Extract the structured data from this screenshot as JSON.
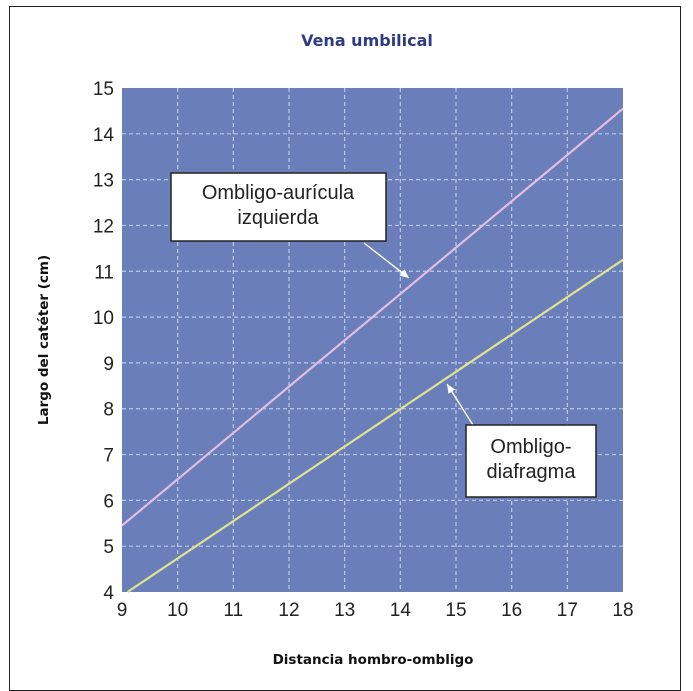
{
  "chart_data": {
    "type": "line",
    "title": "Vena umbilical",
    "xlabel": "Distancia hombro-ombligo",
    "ylabel": "Largo del catéter (cm)",
    "xlim": [
      9,
      18
    ],
    "ylim": [
      4,
      15
    ],
    "xticks": [
      "9",
      "10",
      "11",
      "12",
      "13",
      "14",
      "15",
      "16",
      "17",
      "18"
    ],
    "yticks": [
      "4",
      "5",
      "6",
      "7",
      "8",
      "9",
      "10",
      "11",
      "12",
      "13",
      "14",
      "15"
    ],
    "grid": true,
    "colors": {
      "plot_background": "#6a7fba",
      "grid": "#bcc8ea",
      "title": "#2d3c82",
      "series_1": "#e2bde0",
      "series_2": "#dfe38e"
    },
    "series": [
      {
        "name": "Ombligo-aurícula izquierda",
        "label_lines": [
          "Ombligo-aurícula",
          "izquierda"
        ],
        "x": [
          9,
          18
        ],
        "y": [
          5.45,
          14.55
        ]
      },
      {
        "name": "Ombligo-diafragma",
        "label_lines": [
          "Ombligo-",
          "diafragma"
        ],
        "x": [
          9.1,
          18
        ],
        "y": [
          4,
          11.25
        ]
      }
    ]
  }
}
